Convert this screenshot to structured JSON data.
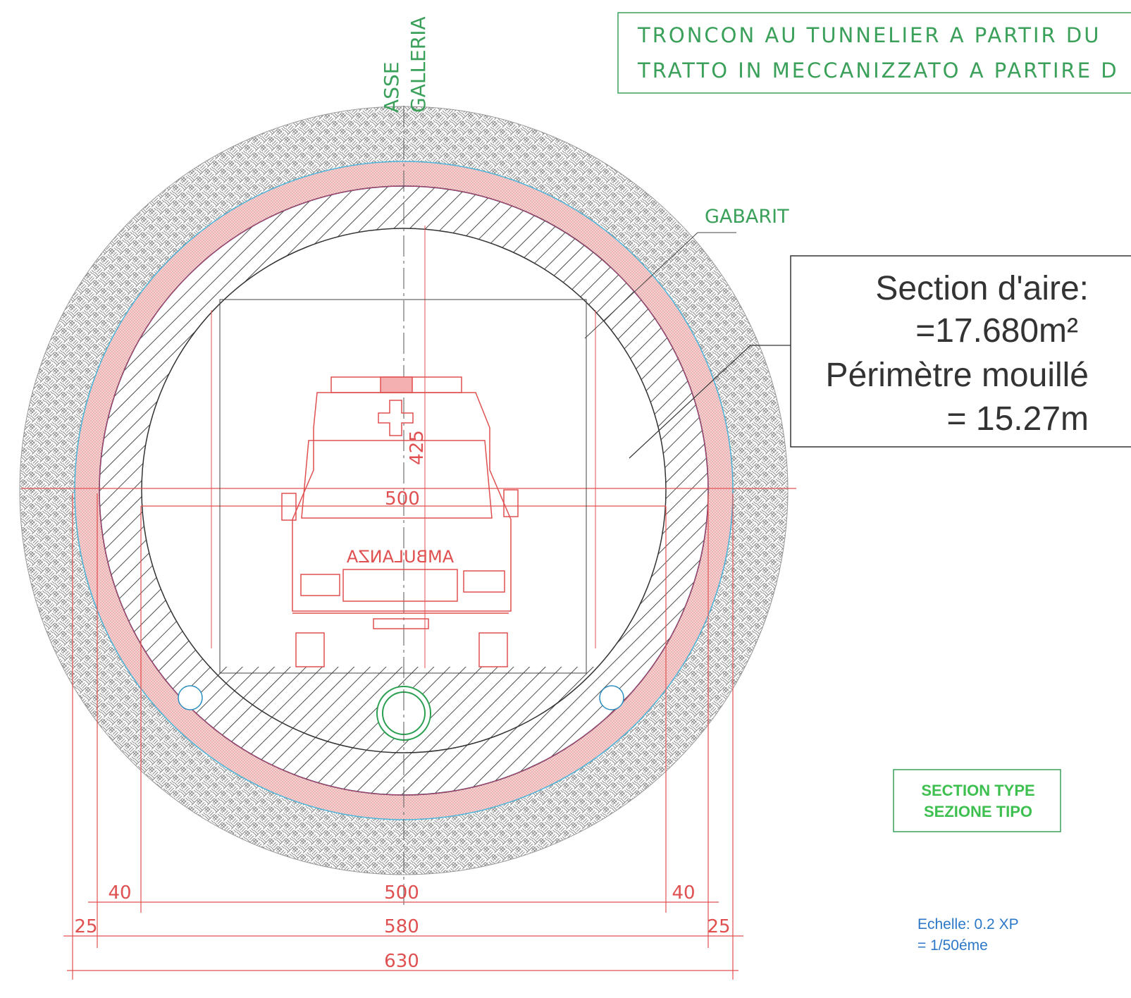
{
  "header": {
    "line1": "TRONCON AU TUNNELIER A PARTIR DU",
    "line2": "TRATTO IN MECCANIZZATO A PARTIRE D"
  },
  "axis_label": {
    "line1": "ASSE",
    "line2": "GALLERIA"
  },
  "gabarit": "GABARIT",
  "section_info": {
    "area_label": "Section d'aire:",
    "area_value": "=17.680m²",
    "perimeter_label": "Périmètre mouillé",
    "perimeter_value": "= 15.27m"
  },
  "vehicle_label": "AMBULANZA",
  "dimensions": {
    "gabarit_height": 425,
    "gabarit_width": 500,
    "row1": [
      40,
      500,
      40
    ],
    "row2": [
      25,
      580,
      25
    ],
    "row3": [
      630
    ]
  },
  "section_type": {
    "line1": "SECTION TYPE",
    "line2": "SEZIONE TIPO"
  },
  "scale": {
    "line1": "Echelle: 0.2 XP",
    "line2": "= 1/50éme"
  }
}
